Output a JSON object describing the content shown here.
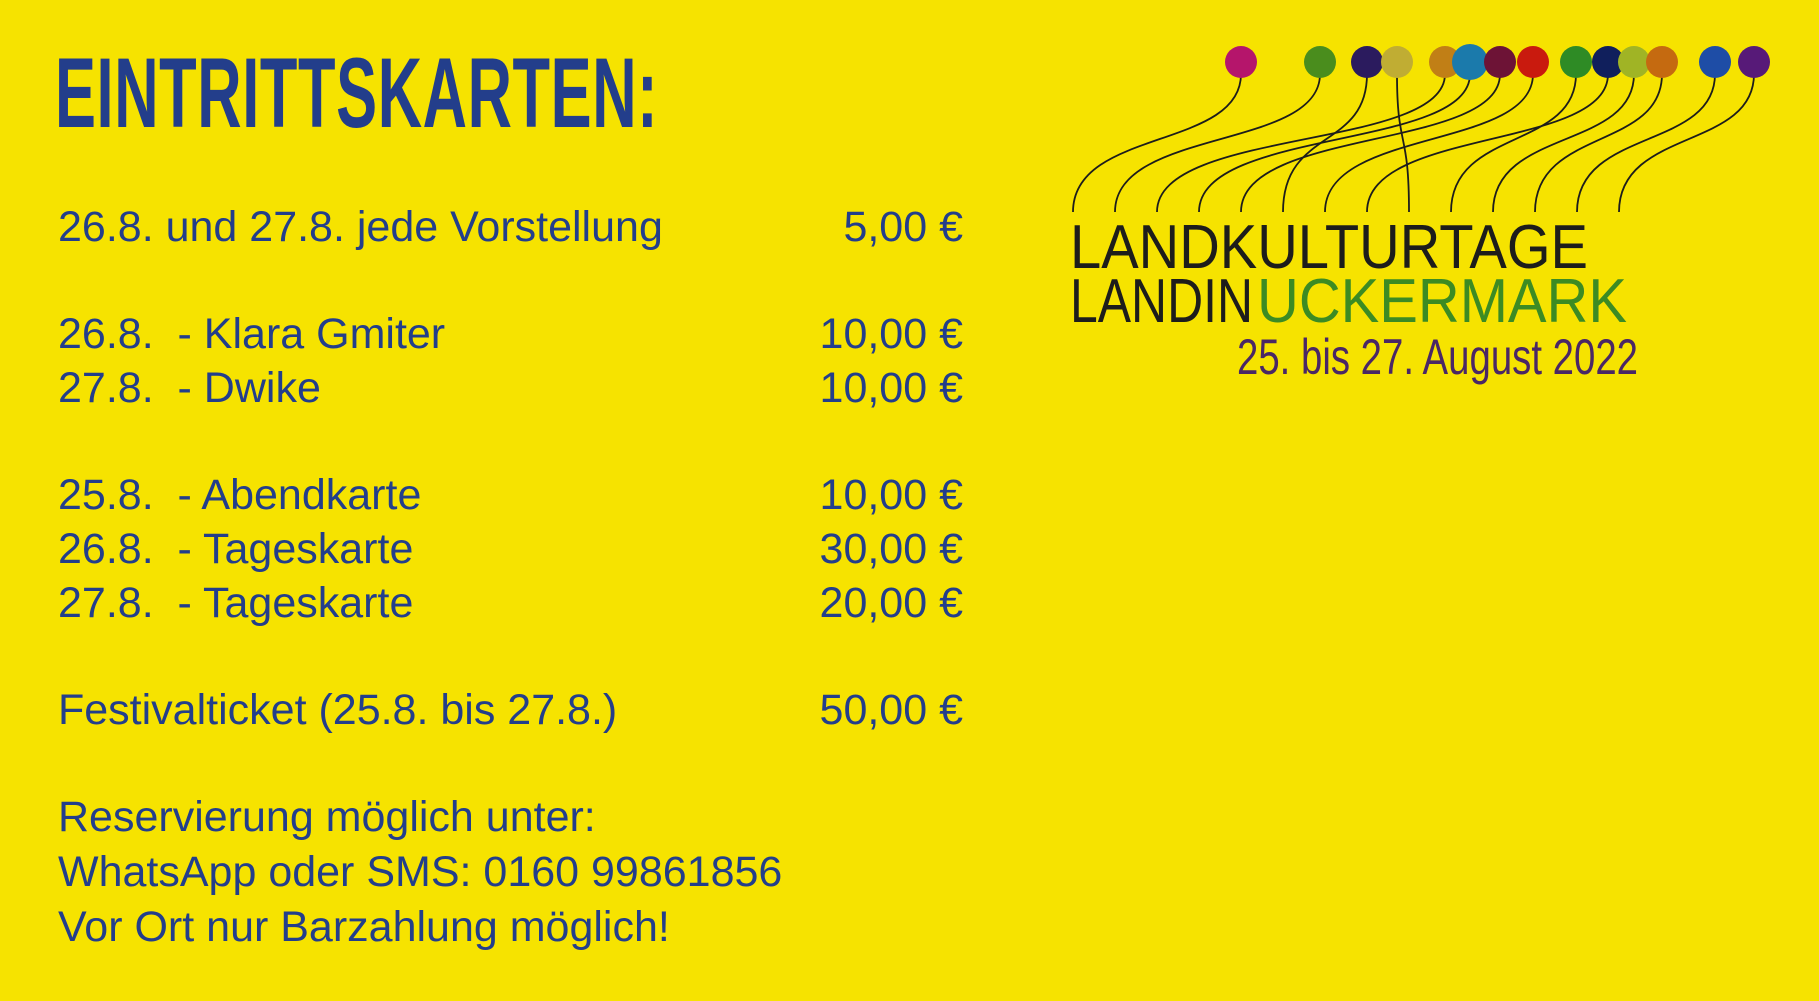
{
  "poster": {
    "title": "EINTRITTSKARTEN:",
    "colors": {
      "background": "#f6e300",
      "ink": "#233e8b"
    },
    "ticket_groups": [
      {
        "rows": [
          {
            "label": "26.8. und 27.8. jede Vorstellung",
            "price": "5,00 €"
          }
        ]
      },
      {
        "rows": [
          {
            "label": "26.8.  - Klara Gmiter",
            "price": "10,00 €"
          },
          {
            "label": "27.8.  - Dwike",
            "price": "10,00 €"
          }
        ]
      },
      {
        "rows": [
          {
            "label": "25.8.  - Abendkarte",
            "price": "10,00 €"
          },
          {
            "label": "26.8.  - Tageskarte",
            "price": "30,00 €"
          },
          {
            "label": "27.8.  - Tageskarte",
            "price": "20,00 €"
          }
        ]
      },
      {
        "rows": [
          {
            "label": "Festivalticket (25.8. bis 27.8.)",
            "price": "50,00 €"
          }
        ]
      }
    ],
    "info_lines": [
      "Reservierung möglich unter:",
      "WhatsApp oder SMS: 0160 99861856",
      "Vor Ort nur Barzahlung möglich!"
    ]
  },
  "logo": {
    "name": "landkulturtage-festival-logo",
    "title_line1": "LANDKULTURTAGE",
    "title_line2_dark": "LANDIN",
    "title_line2_green": "UCKERMARK",
    "date_line": "25. bis 27. August 2022",
    "colors": {
      "text_dark": "#1d1d1b",
      "text_green": "#3c8b23",
      "text_date": "#4a2765",
      "string_line": "#1d1d1b"
    },
    "dot_colors": [
      "#b5156b",
      "#4a8d1d",
      "#2b1b5e",
      "#c0ad33",
      "#c17f16",
      "#1b7aab",
      "#6d1336",
      "#c91a0e",
      "#2e8b25",
      "#101f5c",
      "#a0b425",
      "#c56a10",
      "#1e4da6",
      "#571a78"
    ]
  }
}
